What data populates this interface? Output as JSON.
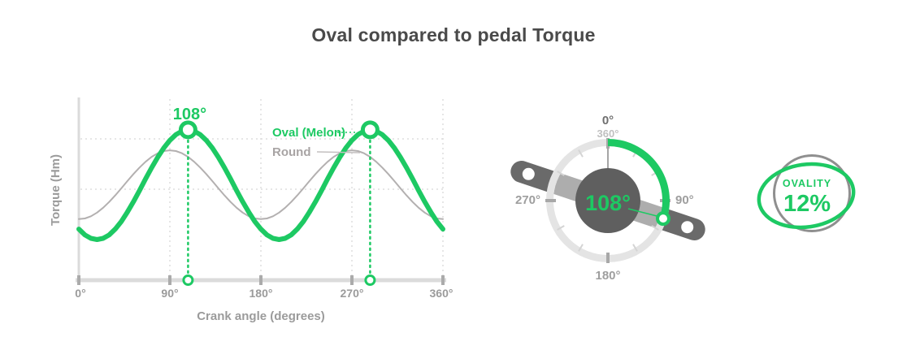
{
  "page": {
    "title": "Oval compared to pedal Torque"
  },
  "colors": {
    "accent_green": "#1dc963",
    "round_gray": "#b3b0b0",
    "dark_gray": "#5f5f5f",
    "light_ring_gray": "#e4e4e4"
  },
  "chart_data": {
    "type": "line",
    "title": "",
    "xlabel": "Crank angle (degrees)",
    "ylabel": "Torque (Hm)",
    "x_ticks": [
      "0°",
      "90°",
      "180°",
      "270°",
      "360°"
    ],
    "x_range": [
      0,
      360
    ],
    "x_step_deg": 6,
    "ylim": [
      0,
      1
    ],
    "grid": true,
    "legend_position": "inline-right",
    "series": [
      {
        "name": "Oval (Melon)",
        "color": "#1dc963",
        "values": [
          0.282,
          0.25,
          0.231,
          0.224,
          0.231,
          0.25,
          0.282,
          0.324,
          0.376,
          0.433,
          0.495,
          0.559,
          0.621,
          0.679,
          0.73,
          0.772,
          0.804,
          0.823,
          0.83,
          0.823,
          0.804,
          0.772,
          0.73,
          0.679,
          0.621,
          0.559,
          0.495,
          0.433,
          0.376,
          0.324,
          0.282,
          0.25,
          0.231,
          0.224,
          0.231,
          0.25,
          0.282,
          0.324,
          0.376,
          0.433,
          0.495,
          0.559,
          0.621,
          0.679,
          0.73,
          0.772,
          0.804,
          0.823,
          0.83,
          0.823,
          0.804,
          0.772,
          0.73,
          0.679,
          0.621,
          0.559,
          0.495,
          0.433,
          0.376,
          0.324,
          0.282
        ]
      },
      {
        "name": "Round",
        "color": "#b3b0b0",
        "values": [
          0.337,
          0.341,
          0.353,
          0.373,
          0.4,
          0.432,
          0.468,
          0.507,
          0.547,
          0.586,
          0.622,
          0.654,
          0.681,
          0.701,
          0.713,
          0.717,
          0.713,
          0.701,
          0.681,
          0.654,
          0.622,
          0.586,
          0.547,
          0.507,
          0.468,
          0.432,
          0.4,
          0.373,
          0.353,
          0.341,
          0.337,
          0.341,
          0.353,
          0.373,
          0.4,
          0.432,
          0.468,
          0.507,
          0.547,
          0.586,
          0.622,
          0.654,
          0.681,
          0.701,
          0.713,
          0.717,
          0.713,
          0.701,
          0.681,
          0.654,
          0.622,
          0.586,
          0.547,
          0.507,
          0.468,
          0.432,
          0.4,
          0.373,
          0.353,
          0.341,
          0.337
        ]
      }
    ],
    "peak": {
      "label": "108°",
      "angles_deg": [
        108,
        288
      ],
      "value": 0.83
    }
  },
  "gauge": {
    "value_label": "108°",
    "arc_start_deg": 0,
    "arc_end_deg": 108,
    "labels": {
      "top": "0°",
      "top_secondary": "360°",
      "right": "90°",
      "bottom": "180°",
      "left": "270°"
    }
  },
  "ovality": {
    "label": "OVALITY",
    "value": "12%"
  }
}
